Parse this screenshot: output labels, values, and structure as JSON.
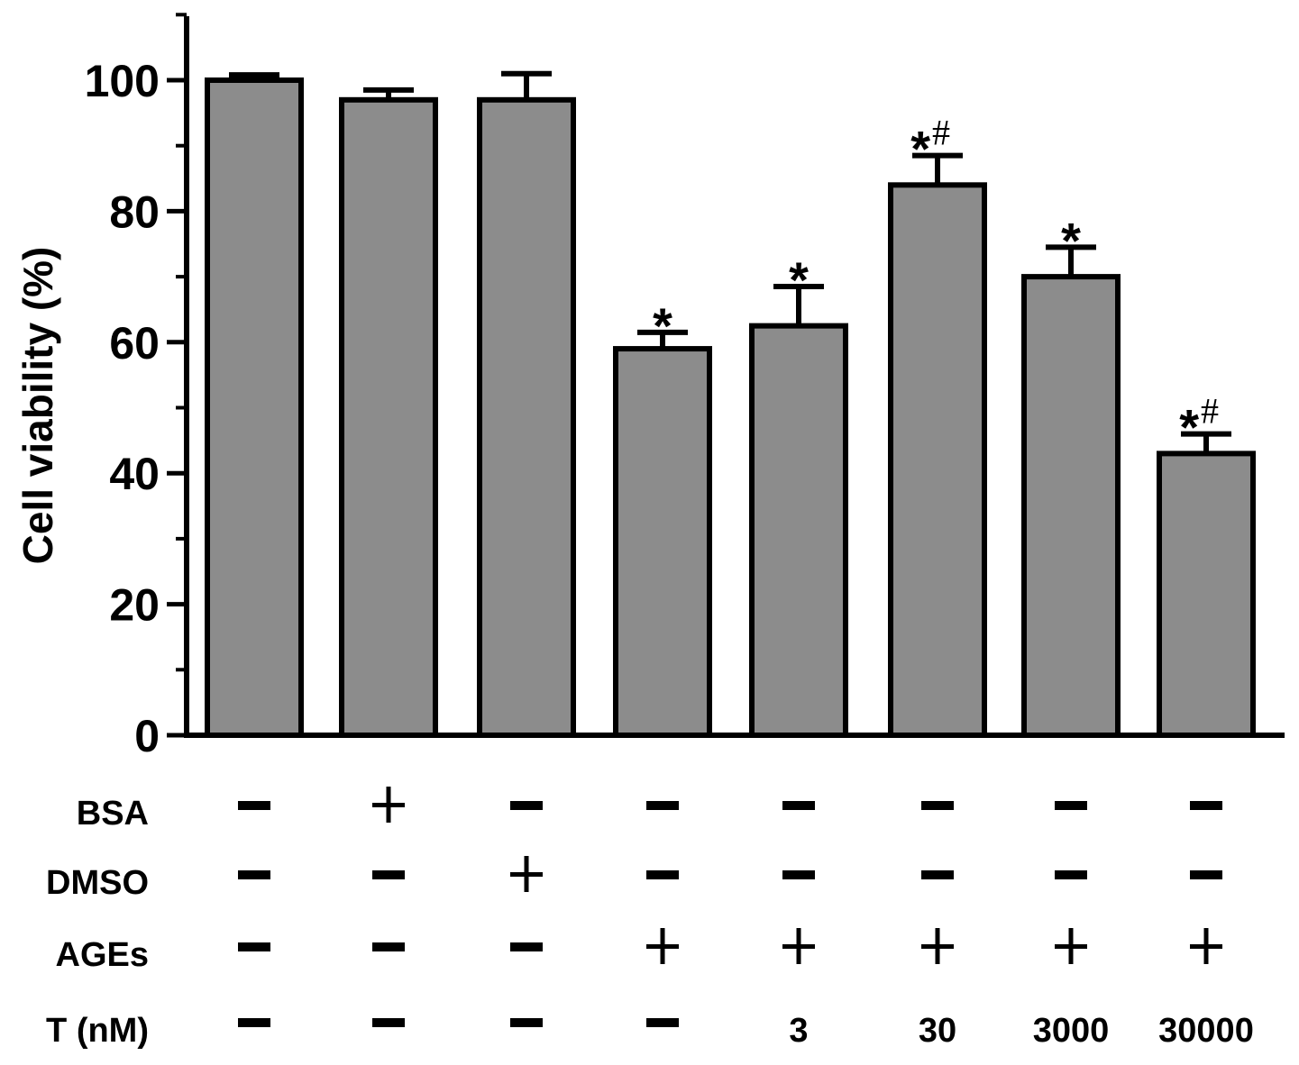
{
  "chart_data": {
    "type": "bar",
    "ylabel": "Cell viability (%)",
    "ylim": [
      0,
      110
    ],
    "yticks": [
      "0",
      "20",
      "40",
      "60",
      "80",
      "100"
    ],
    "bar_color": "#8c8c8c",
    "values": [
      100,
      97,
      97,
      59,
      62.5,
      84,
      70,
      43
    ],
    "errors": [
      0.8,
      1.5,
      4,
      2.5,
      6,
      4.5,
      4.5,
      3
    ],
    "annotations": [
      "",
      "",
      "",
      "*",
      "*",
      "*#",
      "*",
      "*#"
    ],
    "conditions": [
      {
        "label": "BSA",
        "values": [
          "−",
          "+",
          "−",
          "−",
          "−",
          "−",
          "−",
          "−"
        ]
      },
      {
        "label": "DMSO",
        "values": [
          "−",
          "−",
          "+",
          "−",
          "−",
          "−",
          "−",
          "−"
        ]
      },
      {
        "label": "AGEs",
        "values": [
          "−",
          "−",
          "−",
          "+",
          "+",
          "+",
          "+",
          "+"
        ]
      },
      {
        "label": "T (nM)",
        "values": [
          "−",
          "−",
          "−",
          "−",
          "3",
          "30",
          "3000",
          "30000"
        ]
      }
    ]
  }
}
